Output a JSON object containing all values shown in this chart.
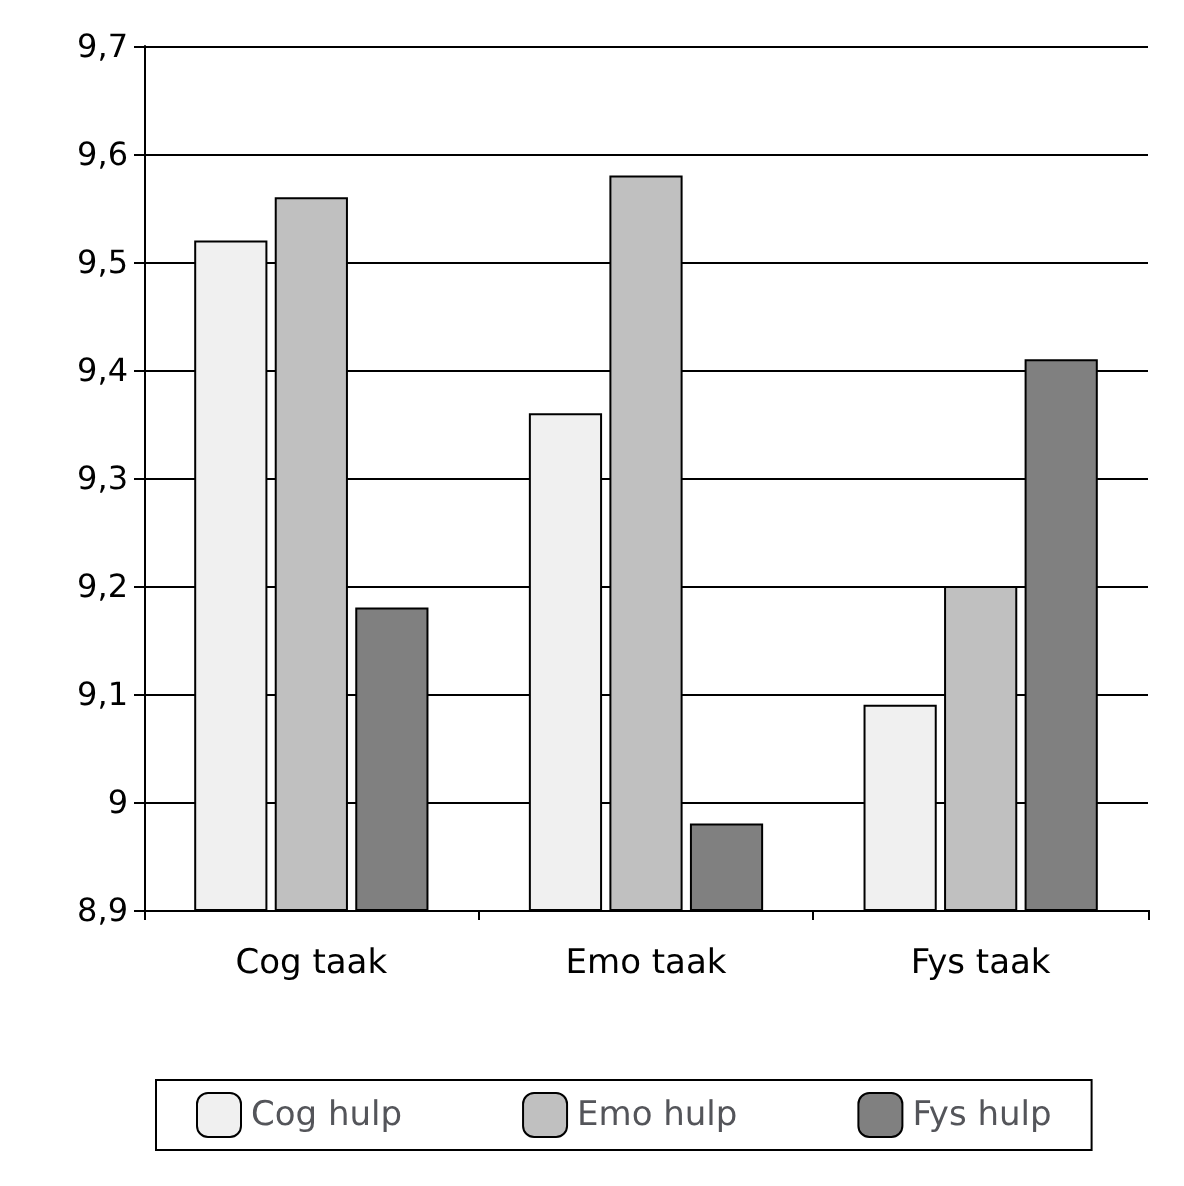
{
  "chart_data": {
    "type": "bar",
    "categories": [
      "Cog taak",
      "Emo taak",
      "Fys taak"
    ],
    "series": [
      {
        "name": "Cog hulp",
        "color": "#f0f0f0",
        "values": [
          9.52,
          9.36,
          9.09
        ]
      },
      {
        "name": "Emo hulp",
        "color": "#c0c0c0",
        "values": [
          9.56,
          9.58,
          9.2
        ]
      },
      {
        "name": "Fys hulp",
        "color": "#808080",
        "values": [
          9.18,
          8.98,
          9.41
        ]
      }
    ],
    "ylim": [
      8.9,
      9.7
    ],
    "yticks": [
      {
        "value": 8.9,
        "label": "8,9"
      },
      9,
      {
        "value": 9.1,
        "label": "9,1"
      },
      {
        "value": 9.2,
        "label": "9,2"
      },
      {
        "value": 9.3,
        "label": "9,3"
      },
      {
        "value": 9.4,
        "label": "9,4"
      },
      {
        "value": 9.5,
        "label": "9,5"
      },
      {
        "value": 9.6,
        "label": "9,6"
      },
      {
        "value": 9.7,
        "label": "9,7"
      }
    ],
    "grid": "y",
    "legend": "bottom"
  }
}
